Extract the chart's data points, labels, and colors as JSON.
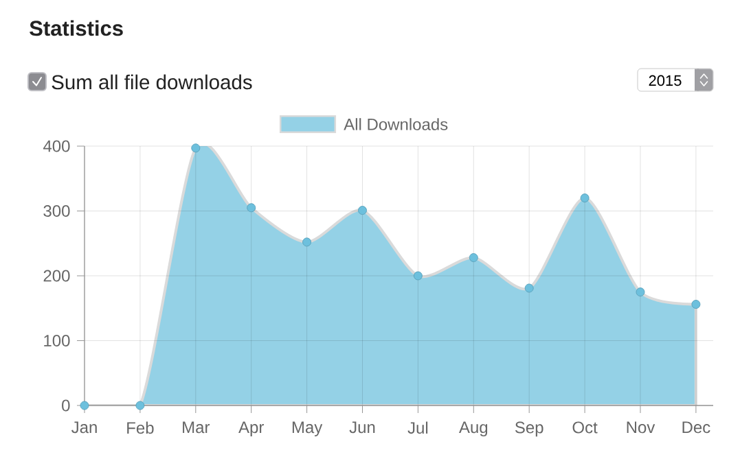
{
  "chart_data": {
    "type": "area",
    "title": "Statistics",
    "annotations": [
      "Sum all file downloads",
      "2015"
    ],
    "categories": [
      "Jan",
      "Feb",
      "Mar",
      "Apr",
      "May",
      "Jun",
      "Jul",
      "Aug",
      "Sep",
      "Oct",
      "Nov",
      "Dec"
    ],
    "series": [
      {
        "name": "All Downloads",
        "color": "#94d1e6",
        "values": [
          0,
          0,
          397,
          305,
          252,
          301,
          200,
          228,
          181,
          320,
          175,
          156
        ]
      }
    ],
    "ylim": [
      0,
      400
    ],
    "yticks": [
      0,
      100,
      200,
      300,
      400
    ],
    "grid": true,
    "legend": "top",
    "marker": "circle"
  }
}
